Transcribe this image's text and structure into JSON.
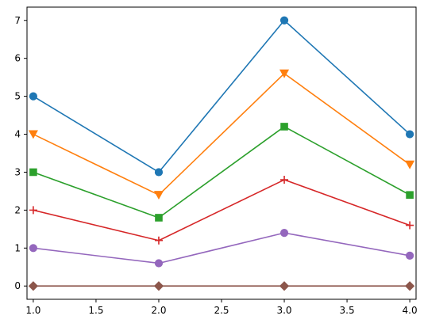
{
  "chart_data": {
    "type": "line",
    "title": "",
    "xlabel": "",
    "ylabel": "",
    "x": [
      1,
      2,
      3,
      4
    ],
    "xlim": [
      0.95,
      4.05
    ],
    "ylim": [
      -0.35,
      7.35
    ],
    "xticks": [
      1.0,
      1.5,
      2.0,
      2.5,
      3.0,
      3.5,
      4.0
    ],
    "xtick_labels": [
      "1.0",
      "1.5",
      "2.0",
      "2.5",
      "3.0",
      "3.5",
      "4.0"
    ],
    "yticks": [
      0,
      1,
      2,
      3,
      4,
      5,
      6,
      7
    ],
    "ytick_labels": [
      "0",
      "1",
      "2",
      "3",
      "4",
      "5",
      "6",
      "7"
    ],
    "grid": false,
    "legend": "none",
    "series": [
      {
        "values": [
          5,
          3,
          7,
          4
        ],
        "color": "#1f77b4",
        "marker": "circle"
      },
      {
        "values": [
          4,
          2.4,
          5.6,
          3.2
        ],
        "color": "#ff7f0e",
        "marker": "triangle-down"
      },
      {
        "values": [
          3,
          1.8,
          4.2,
          2.4
        ],
        "color": "#2ca02c",
        "marker": "square"
      },
      {
        "values": [
          2,
          1.2,
          2.8,
          1.6
        ],
        "color": "#d62728",
        "marker": "plus"
      },
      {
        "values": [
          1,
          0.6,
          1.4,
          0.8
        ],
        "color": "#9467bd",
        "marker": "circle"
      },
      {
        "values": [
          0,
          0,
          0,
          0
        ],
        "color": "#8c564b",
        "marker": "diamond"
      }
    ]
  }
}
